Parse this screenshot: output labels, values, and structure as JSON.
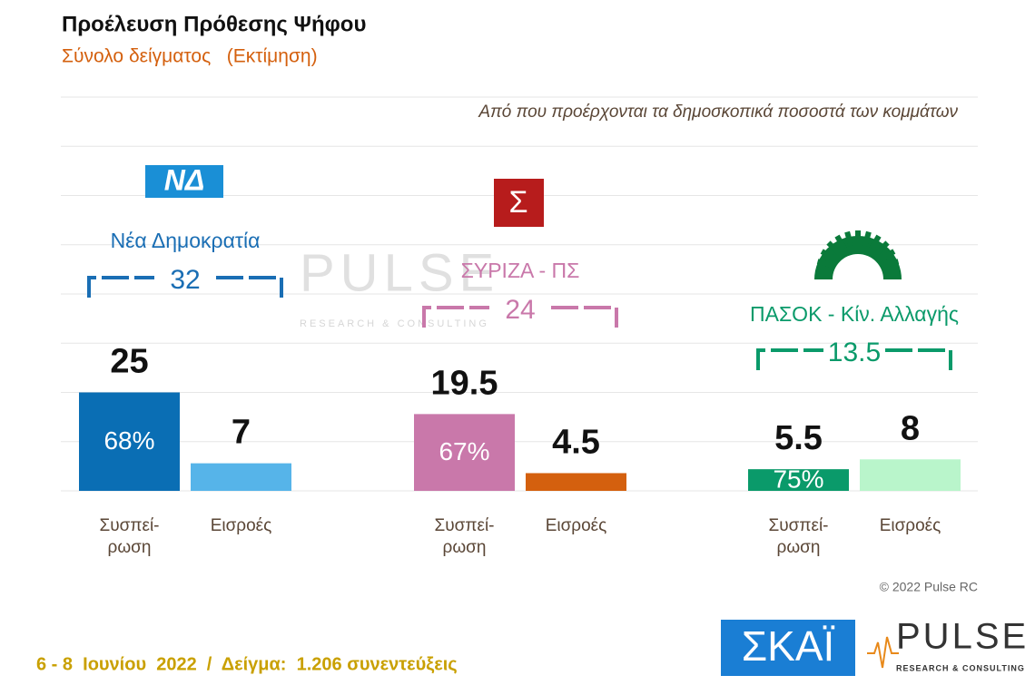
{
  "chart_data": {
    "type": "bar",
    "title": "Προέλευση Πρόθεσης Ψήφου",
    "subtitle": "Σύνολο δείγματος   (Εκτίμηση)",
    "annotation": "Από που προέρχονται τα δημοσκοπικά ποσοστά των κομμάτων",
    "categories": [
      "Συσπεί-\nρωση",
      "Εισροές"
    ],
    "ylim": [
      0,
      100
    ],
    "grid": true,
    "groups": [
      {
        "name": "Νέα Δημοκρατία",
        "logo": "ΝΔ",
        "total": 32,
        "name_color": "#1a6eb4",
        "colors": [
          "#0a6eb4",
          "#56b4e9"
        ],
        "values": [
          25,
          7
        ],
        "share": 68,
        "share_label": "68%"
      },
      {
        "name": "ΣΥΡΙΖΑ - ΠΣ",
        "logo": "Σ",
        "total": 24,
        "name_color": "#c978aa",
        "colors": [
          "#c978aa",
          "#d4600e"
        ],
        "values": [
          19.5,
          4.5
        ],
        "share": 67,
        "share_label": "67%"
      },
      {
        "name": "ΠΑΣΟΚ - Κίν. Αλλαγής",
        "total": 13.5,
        "name_color": "#0a9a6a",
        "colors": [
          "#0a9a6a",
          "#b9f5cb"
        ],
        "values": [
          5.5,
          8
        ],
        "share": 75,
        "share_label": "75%"
      }
    ],
    "copyright": "© 2022 Pulse RC",
    "footer": "6 - 8  Ιουνίου  2022  /  Δείγμα:  1.206 συνεντεύξεις",
    "brand": {
      "skai": "ΣΚΑΪ",
      "pulse": "PULSE",
      "pulse_sub": "RESEARCH & CONSULTING"
    }
  }
}
